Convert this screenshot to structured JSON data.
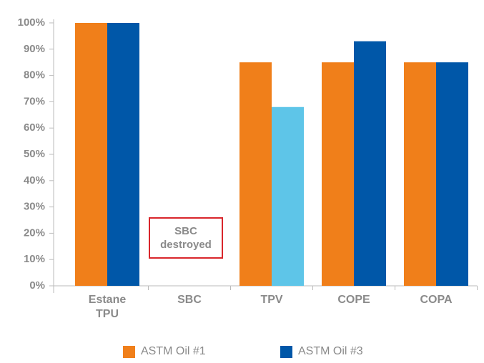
{
  "chart_data": {
    "type": "bar",
    "categories": [
      "Estane TPU",
      "SBC",
      "TPV",
      "COPE",
      "COPA"
    ],
    "series": [
      {
        "name": "ASTM Oil #1",
        "color": "#f07f1a",
        "values": [
          100,
          null,
          85,
          85,
          85
        ]
      },
      {
        "name": "ASTM Oil #3",
        "color": "#0057a8",
        "colors": [
          "#0057a8",
          "#0057a8",
          "#5ec5e8",
          "#0057a8",
          "#0057a8"
        ],
        "values": [
          100,
          null,
          68,
          93,
          85
        ]
      }
    ],
    "ylim": [
      0,
      100
    ],
    "yticks": [
      {
        "value": 0,
        "label": "0%"
      },
      {
        "value": 10,
        "label": "10%"
      },
      {
        "value": 20,
        "label": "20%"
      },
      {
        "value": 30,
        "label": "30%"
      },
      {
        "value": 40,
        "label": "40%"
      },
      {
        "value": 50,
        "label": "50%"
      },
      {
        "value": 60,
        "label": "60%"
      },
      {
        "value": 70,
        "label": "70%"
      },
      {
        "value": 80,
        "label": "80%"
      },
      {
        "value": 90,
        "label": "90%"
      },
      {
        "value": 100,
        "label": "100%"
      }
    ],
    "annotation": "SBC destroyed",
    "legend": "bottom"
  }
}
